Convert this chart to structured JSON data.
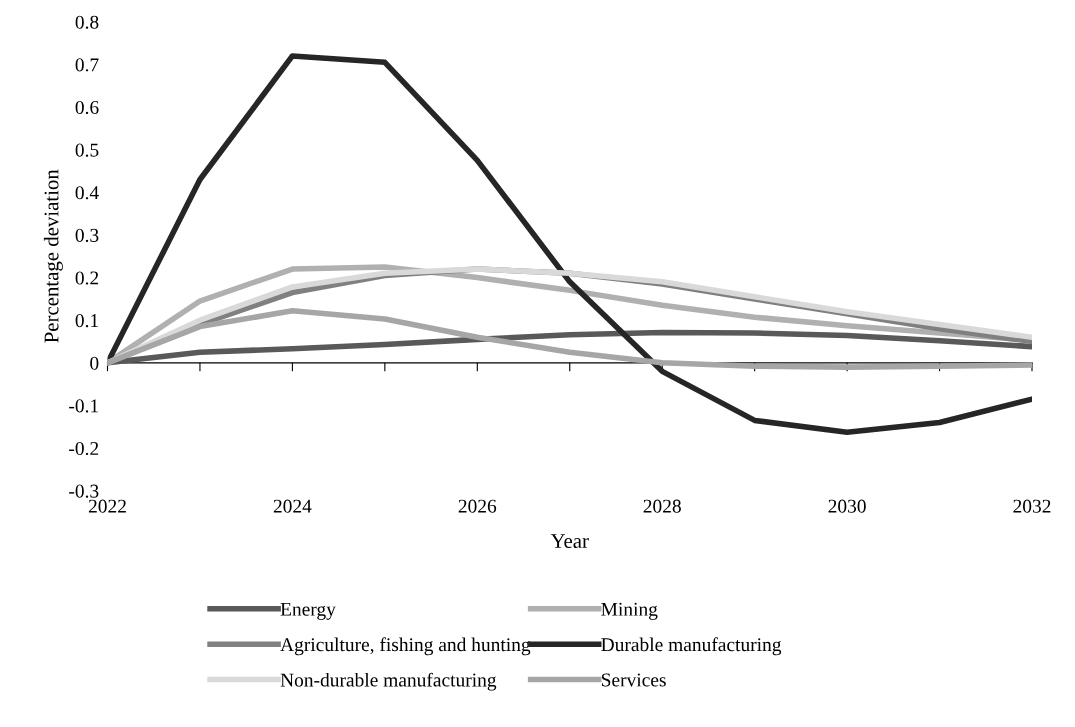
{
  "chart_data": {
    "type": "line",
    "xlabel": "Year",
    "ylabel": "Percentage deviation",
    "x": [
      2022,
      2023,
      2024,
      2025,
      2026,
      2027,
      2028,
      2029,
      2030,
      2031,
      2032
    ],
    "xlim": [
      2022,
      2032
    ],
    "xticks": [
      2022,
      {
        "value": 2023,
        "label": null
      },
      2024,
      {
        "value": 2025,
        "label": null
      },
      2026,
      {
        "value": 2027,
        "label": null
      },
      2028,
      {
        "value": 2029,
        "label": null
      },
      2030,
      {
        "value": 2031,
        "label": null
      },
      2032
    ],
    "ylim": [
      -0.3,
      0.8
    ],
    "yticks": [
      -0.3,
      -0.2,
      -0.1,
      0,
      0.1,
      0.2,
      0.3,
      0.4,
      0.5,
      0.6,
      0.7,
      0.8
    ],
    "legend": "bottom",
    "marker": "none",
    "line_style": "solid",
    "series": [
      {
        "name": "Energy",
        "color": "#595959",
        "values": [
          0,
          0.025,
          0.033,
          0.043,
          0.055,
          0.066,
          0.071,
          0.07,
          0.064,
          0.052,
          0.038
        ]
      },
      {
        "name": "Mining",
        "color": "#b0b0b0",
        "values": [
          0,
          0.145,
          0.22,
          0.225,
          0.2,
          0.17,
          0.135,
          0.107,
          0.087,
          0.07,
          0.053
        ]
      },
      {
        "name": "Agriculture, fishing and hunting",
        "color": "#808080",
        "values": [
          0,
          0.09,
          0.165,
          0.205,
          0.22,
          0.21,
          0.185,
          0.15,
          0.115,
          0.08,
          0.05
        ]
      },
      {
        "name": "Durable manufacturing",
        "color": "#262626",
        "values": [
          0,
          0.43,
          0.72,
          0.705,
          0.475,
          0.19,
          -0.02,
          -0.135,
          -0.163,
          -0.14,
          -0.085
        ]
      },
      {
        "name": "Non-durable manufacturing",
        "color": "#d9d9d9",
        "values": [
          0,
          0.1,
          0.178,
          0.21,
          0.22,
          0.21,
          0.19,
          0.155,
          0.12,
          0.09,
          0.06
        ]
      },
      {
        "name": "Services",
        "color": "#a6a6a6",
        "values": [
          0,
          0.085,
          0.122,
          0.103,
          0.06,
          0.025,
          0.0,
          -0.008,
          -0.01,
          -0.008,
          -0.005
        ]
      }
    ]
  }
}
